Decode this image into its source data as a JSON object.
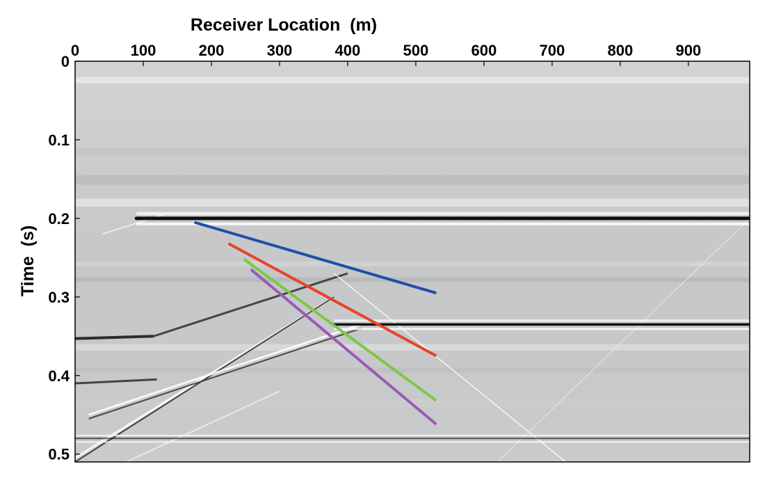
{
  "chart_data": {
    "type": "line",
    "title": "",
    "xlabel": "Receiver Location  (m)",
    "ylabel": "Time  (s)",
    "xlim": [
      0,
      990
    ],
    "ylim": [
      0.51,
      0
    ],
    "x_axis_position": "top",
    "y_inverted": true,
    "grid": false,
    "legend": "none",
    "xticks": [
      0,
      100,
      200,
      300,
      400,
      500,
      600,
      700,
      800,
      900
    ],
    "yticks": [
      0,
      0.1,
      0.2,
      0.3,
      0.4,
      0.5
    ],
    "ytick_labels": [
      "0",
      "0.1",
      "0.2",
      "0.3",
      "0.4",
      "0.5"
    ],
    "background": "grayscale seismic shot gather (wiggle/variable-density image)",
    "reflectors": [
      {
        "t": 0.2,
        "x_start": 90,
        "x_end": 990,
        "strength": "strong"
      },
      {
        "t": 0.335,
        "x_start": 380,
        "x_end": 990,
        "strength": "medium"
      },
      {
        "t": 0.48,
        "x_start": 0,
        "x_end": 990,
        "strength": "weak"
      }
    ],
    "series": [
      {
        "color": "#1f4fa8",
        "x": [
          175,
          530
        ],
        "y": [
          0.205,
          0.295
        ]
      },
      {
        "color": "#e8442a",
        "x": [
          225,
          530
        ],
        "y": [
          0.232,
          0.375
        ]
      },
      {
        "color": "#7ac943",
        "x": [
          248,
          530
        ],
        "y": [
          0.252,
          0.432
        ]
      },
      {
        "color": "#9b59b6",
        "x": [
          258,
          530
        ],
        "y": [
          0.265,
          0.462
        ]
      }
    ]
  }
}
